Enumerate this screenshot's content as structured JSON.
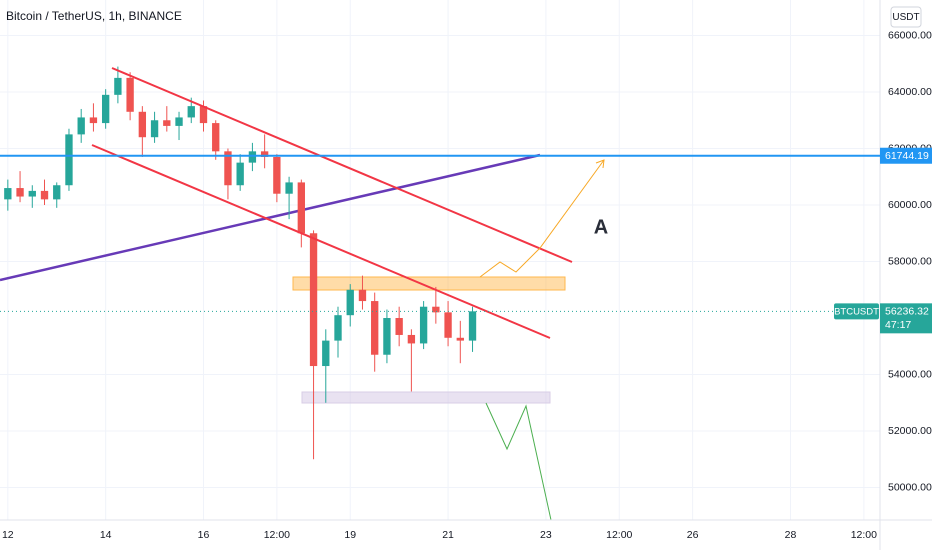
{
  "chart_data": {
    "type": "candlestick",
    "title": "Bitcoin / TetherUS, 1h, BINANCE",
    "currency_button": "USDT",
    "symbol": "BTCUSDT",
    "last_price": 56236.32,
    "countdown": "47:17",
    "annotation": "A",
    "up_color": "#26a69a",
    "down_color": "#ef5350",
    "horizontal_line": {
      "value": 61744.19,
      "color": "#2196f3"
    },
    "x": [
      12,
      12.25,
      12.5,
      12.75,
      13,
      13.25,
      13.5,
      13.75,
      14,
      14.25,
      14.5,
      14.75,
      15,
      15.25,
      15.5,
      15.75,
      16,
      16.25,
      16.5,
      16.75,
      17,
      17.25,
      17.5,
      17.75,
      18,
      18.25,
      18.5,
      18.75,
      19,
      19.25,
      19.5,
      19.75,
      20,
      20.25,
      20.5,
      20.75,
      21,
      21.25,
      21.5
    ],
    "open": [
      60200,
      60600,
      60300,
      60500,
      60200,
      60700,
      62500,
      63100,
      62900,
      63900,
      64500,
      63300,
      62400,
      63000,
      62800,
      63100,
      63500,
      62900,
      61900,
      60700,
      61500,
      61900,
      61700,
      60400,
      60800,
      59000,
      54300,
      55200,
      56100,
      57000,
      56600,
      54700,
      56000,
      55400,
      55100,
      56400,
      56200,
      55300,
      55200
    ],
    "high": [
      60900,
      61200,
      60700,
      60900,
      60800,
      62700,
      63400,
      63600,
      64100,
      64900,
      64700,
      63500,
      63300,
      63500,
      63300,
      63800,
      63700,
      63000,
      62000,
      61800,
      62200,
      62500,
      61800,
      61000,
      60900,
      59100,
      55600,
      56400,
      57200,
      57500,
      56900,
      56300,
      56400,
      55600,
      56600,
      57100,
      56600,
      55900,
      56400
    ],
    "low": [
      59800,
      60100,
      59900,
      60000,
      59900,
      60500,
      62200,
      62600,
      62700,
      63600,
      63000,
      61700,
      62200,
      62600,
      62300,
      62900,
      62600,
      61600,
      60200,
      60500,
      61200,
      61300,
      60100,
      59500,
      58500,
      51000,
      53000,
      54600,
      55700,
      56300,
      54100,
      54400,
      55000,
      53400,
      54900,
      55800,
      55000,
      54400,
      54800
    ],
    "close": [
      60600,
      60300,
      60500,
      60200,
      60700,
      62500,
      63100,
      62900,
      63900,
      64500,
      63300,
      62400,
      63000,
      62800,
      63100,
      63500,
      62900,
      61900,
      60700,
      61500,
      61900,
      61700,
      60400,
      60800,
      59000,
      54300,
      55200,
      56100,
      57000,
      56600,
      54700,
      56000,
      55400,
      55100,
      56400,
      56200,
      55300,
      55200,
      56236.32
    ],
    "xlim": [
      11.84,
      29.83
    ],
    "xticks": [
      {
        "value": 12,
        "label": "12"
      },
      {
        "value": 14,
        "label": "14"
      },
      {
        "value": 16,
        "label": "16"
      },
      {
        "value": 17.5,
        "label": "12:00"
      },
      {
        "value": 19,
        "label": "19"
      },
      {
        "value": 21,
        "label": "21"
      },
      {
        "value": 23,
        "label": "23"
      },
      {
        "value": 24.5,
        "label": "12:00"
      },
      {
        "value": 26,
        "label": "26"
      },
      {
        "value": 28,
        "label": "28"
      },
      {
        "value": 29.5,
        "label": "12:00"
      }
    ],
    "ylim": [
      48850,
      67257
    ],
    "yticks": [
      {
        "value": 50000,
        "label": "50000.00"
      },
      {
        "value": 52000,
        "label": "52000.00"
      },
      {
        "value": 54000,
        "label": "54000.00"
      },
      {
        "value": 58000,
        "label": "58000.00"
      },
      {
        "value": 60000,
        "label": "60000.00"
      },
      {
        "value": 62000,
        "label": "62000.00"
      },
      {
        "value": 64000,
        "label": "64000.00"
      },
      {
        "value": 66000,
        "label": "66000.00"
      }
    ]
  }
}
